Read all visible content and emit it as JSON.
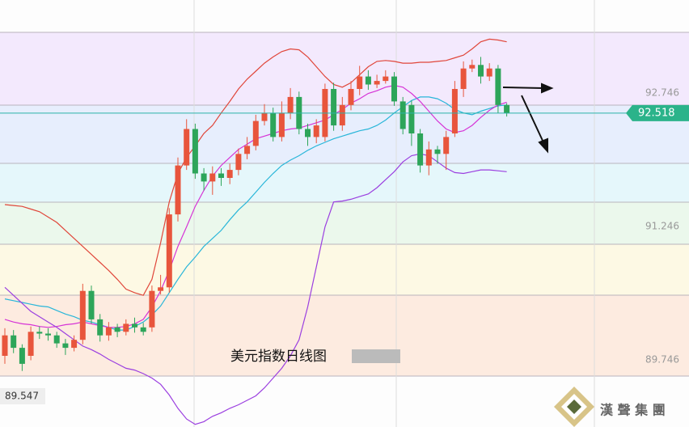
{
  "chart_data": {
    "type": "candlestick",
    "title": "美元指数日线图",
    "watermark": "漢 聲 集 團",
    "ylim": [
      88.99,
      93.79
    ],
    "yticks": [
      92.746,
      91.246,
      89.746
    ],
    "current_price": 92.518,
    "annotations": [
      "89.547"
    ],
    "up_color": "#e8553c",
    "down_color": "#2da55a",
    "open": [
      89.79,
      90.02,
      89.88,
      89.79,
      90.06,
      90.04,
      90.02,
      89.93,
      89.88,
      89.97,
      90.52,
      90.2,
      90.02,
      90.11,
      90.06,
      90.15,
      90.11,
      90.11,
      90.52,
      90.56,
      91.38,
      91.93,
      92.34,
      91.84,
      91.75,
      91.84,
      91.79,
      91.88,
      92.06,
      92.15,
      92.43,
      92.52,
      92.25,
      92.52,
      92.7,
      92.34,
      92.25,
      92.25,
      92.79,
      92.38,
      92.61,
      92.79,
      92.93,
      92.84,
      92.88,
      92.93,
      92.65,
      92.61,
      92.29,
      91.93,
      92.11,
      92.06,
      92.29,
      92.79,
      93.02,
      93.06,
      92.93,
      93.02,
      92.61
    ],
    "high": [
      90.1,
      90.08,
      89.92,
      90.12,
      90.12,
      90.1,
      90.06,
      89.98,
      90.02,
      90.6,
      90.58,
      90.26,
      90.17,
      90.15,
      90.2,
      90.22,
      90.16,
      90.58,
      90.7,
      91.45,
      92.02,
      92.45,
      92.4,
      91.9,
      91.92,
      91.9,
      91.95,
      92.12,
      92.25,
      92.5,
      92.62,
      92.58,
      92.65,
      92.8,
      92.76,
      92.4,
      92.45,
      92.85,
      92.86,
      92.7,
      92.88,
      93.05,
      93.0,
      92.95,
      93.0,
      92.98,
      92.7,
      92.66,
      92.34,
      92.2,
      92.15,
      92.32,
      92.88,
      93.1,
      93.12,
      93.15,
      93.08,
      93.06,
      92.63
    ],
    "low": [
      89.7,
      89.82,
      89.62,
      89.74,
      89.98,
      89.96,
      89.88,
      89.8,
      89.84,
      89.92,
      90.15,
      89.95,
      89.96,
      90.0,
      90.02,
      90.05,
      90.02,
      90.06,
      90.48,
      90.5,
      91.3,
      91.88,
      91.78,
      91.65,
      91.6,
      91.7,
      91.72,
      91.82,
      92.0,
      92.1,
      92.38,
      92.2,
      92.2,
      92.45,
      92.28,
      92.15,
      92.18,
      92.2,
      92.32,
      92.32,
      92.55,
      92.72,
      92.78,
      92.8,
      92.85,
      92.6,
      92.28,
      92.15,
      91.85,
      91.82,
      91.95,
      91.88,
      92.25,
      92.7,
      92.98,
      92.85,
      92.88,
      92.52,
      92.48
    ],
    "close": [
      90.02,
      89.88,
      89.7,
      90.06,
      90.04,
      90.02,
      89.93,
      89.88,
      89.97,
      90.52,
      90.2,
      90.02,
      90.11,
      90.06,
      90.15,
      90.11,
      90.06,
      90.52,
      90.56,
      91.38,
      91.93,
      92.34,
      91.84,
      91.75,
      91.84,
      91.79,
      91.88,
      92.06,
      92.15,
      92.43,
      92.52,
      92.25,
      92.52,
      92.7,
      92.34,
      92.25,
      92.38,
      92.79,
      92.38,
      92.61,
      92.79,
      92.93,
      92.84,
      92.88,
      92.93,
      92.65,
      92.34,
      92.29,
      91.93,
      92.11,
      92.06,
      92.25,
      92.79,
      93.02,
      93.06,
      92.93,
      93.02,
      92.61,
      92.52
    ],
    "series": [
      {
        "color": "#e0463a",
        "values": [
          91.49,
          91.48,
          91.47,
          91.44,
          91.41,
          91.35,
          91.29,
          91.2,
          91.11,
          91.02,
          90.93,
          90.84,
          90.75,
          90.65,
          90.54,
          90.5,
          90.47,
          90.65,
          91.06,
          91.52,
          91.84,
          92.02,
          92.15,
          92.29,
          92.38,
          92.52,
          92.65,
          92.79,
          92.9,
          92.99,
          93.08,
          93.15,
          93.21,
          93.24,
          93.23,
          93.15,
          93.04,
          92.93,
          92.84,
          92.81,
          92.86,
          92.95,
          93.04,
          93.1,
          93.11,
          93.1,
          93.08,
          93.08,
          93.09,
          93.09,
          93.1,
          93.11,
          93.14,
          93.17,
          93.24,
          93.32,
          93.35,
          93.34,
          93.32
        ]
      },
      {
        "color": "#29b6d9",
        "values": [
          90.43,
          90.41,
          90.39,
          90.37,
          90.35,
          90.34,
          90.3,
          90.26,
          90.23,
          90.19,
          90.17,
          90.14,
          90.11,
          90.08,
          90.08,
          90.12,
          90.17,
          90.25,
          90.35,
          90.5,
          90.65,
          90.79,
          90.9,
          91.02,
          91.11,
          91.2,
          91.32,
          91.43,
          91.52,
          91.63,
          91.74,
          91.84,
          91.93,
          91.99,
          92.04,
          92.1,
          92.15,
          92.19,
          92.23,
          92.26,
          92.29,
          92.32,
          92.34,
          92.38,
          92.44,
          92.52,
          92.59,
          92.66,
          92.7,
          92.7,
          92.68,
          92.63,
          92.56,
          92.52,
          92.5,
          92.54,
          92.57,
          92.6,
          92.61
        ]
      },
      {
        "color": "#d633d6",
        "values": [
          90.2,
          90.17,
          90.15,
          90.14,
          90.12,
          90.11,
          90.12,
          90.14,
          90.15,
          90.17,
          90.15,
          90.13,
          90.11,
          90.11,
          90.12,
          90.15,
          90.2,
          90.34,
          90.52,
          90.75,
          91.02,
          91.24,
          91.47,
          91.65,
          91.81,
          91.93,
          92.02,
          92.11,
          92.17,
          92.23,
          92.26,
          92.29,
          92.32,
          92.34,
          92.35,
          92.38,
          92.41,
          92.44,
          92.5,
          92.56,
          92.63,
          92.68,
          92.74,
          92.77,
          92.81,
          92.83,
          92.81,
          92.74,
          92.65,
          92.54,
          92.43,
          92.34,
          92.3,
          92.32,
          92.38,
          92.47,
          92.55,
          92.61,
          92.64
        ]
      },
      {
        "color": "#9b3fe0",
        "values": [
          90.56,
          90.47,
          90.38,
          90.29,
          90.23,
          90.17,
          90.11,
          90.04,
          89.97,
          89.9,
          89.86,
          89.81,
          89.75,
          89.7,
          89.65,
          89.63,
          89.59,
          89.54,
          89.47,
          89.35,
          89.2,
          89.08,
          89.02,
          89.05,
          89.11,
          89.15,
          89.2,
          89.24,
          89.29,
          89.34,
          89.43,
          89.54,
          89.65,
          89.79,
          89.97,
          90.34,
          90.79,
          91.24,
          91.52,
          91.53,
          91.55,
          91.58,
          91.61,
          91.68,
          91.77,
          91.86,
          91.97,
          92.04,
          92.06,
          92.04,
          91.97,
          91.9,
          91.85,
          91.84,
          91.86,
          91.88,
          91.88,
          91.87,
          91.86
        ]
      }
    ]
  }
}
